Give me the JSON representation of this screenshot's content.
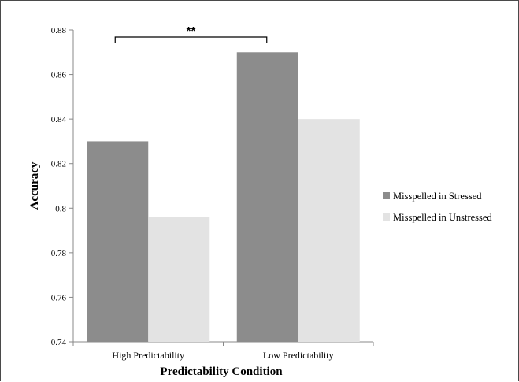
{
  "chart_data": {
    "type": "bar",
    "title": "",
    "xlabel": "Predictability Condition",
    "ylabel": "Accuracy",
    "categories": [
      "High Predictability",
      "Low Predictability"
    ],
    "series": [
      {
        "name": "Misspelled in Stressed",
        "values": [
          0.83,
          0.87
        ],
        "color": "#8c8c8c"
      },
      {
        "name": "Misspelled in Unstressed",
        "values": [
          0.796,
          0.84
        ],
        "color": "#e3e3e3"
      }
    ],
    "ylim": [
      0.74,
      0.88
    ],
    "yticks": [
      "0.74",
      "0.76",
      "0.78",
      "0.8",
      "0.82",
      "0.84",
      "0.86",
      "0.88"
    ],
    "ytick_values": [
      0.74,
      0.76,
      0.78,
      0.8,
      0.82,
      0.84,
      0.86,
      0.88
    ],
    "grid": false,
    "legend_position": "right",
    "annotation": {
      "text": "**",
      "between": "Misspelled in Stressed bars across conditions"
    }
  }
}
